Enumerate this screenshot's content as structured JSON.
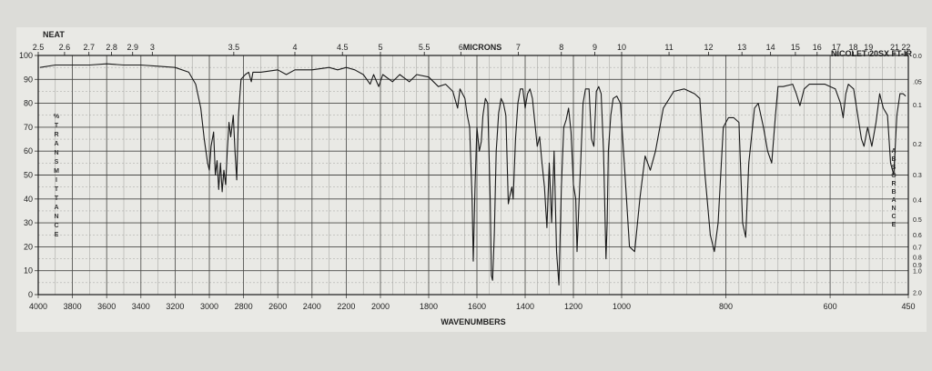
{
  "header": {
    "sample": "NEAT",
    "top_axis_label": "MICRONS",
    "instrument": "NICOLET 20SX FT-IR"
  },
  "chart_data": {
    "type": "line",
    "xlabel": "WAVENUMBERS",
    "ylabel": "% TRANSMITTANCE",
    "y2label": "ABSORBANCE",
    "x_ticks_bottom": [
      {
        "label": "4000",
        "value": 4000
      },
      {
        "label": "3800",
        "value": 3800
      },
      {
        "label": "3600",
        "value": 3600
      },
      {
        "label": "3400",
        "value": 3400
      },
      {
        "label": "3200",
        "value": 3200
      },
      {
        "label": "3000",
        "value": 3000
      },
      {
        "label": "2800",
        "value": 2800
      },
      {
        "label": "2600",
        "value": 2600
      },
      {
        "label": "2400",
        "value": 2400
      },
      {
        "label": "2200",
        "value": 2200
      },
      {
        "label": "2000",
        "value": 2000
      },
      {
        "label": "1800",
        "value": 1800
      },
      {
        "label": "1600",
        "value": 1600
      },
      {
        "label": "1400",
        "value": 1400
      },
      {
        "label": "1200",
        "value": 1200
      },
      {
        "label": "1000",
        "value": 1000
      },
      {
        "label": "800",
        "value": 800
      },
      {
        "label": "600",
        "value": 600
      },
      {
        "label": "450",
        "value": 450
      }
    ],
    "x_ticks_top": [
      {
        "label": "2.5",
        "value": 2.5
      },
      {
        "label": "2.6",
        "value": 2.6
      },
      {
        "label": "2.7",
        "value": 2.7
      },
      {
        "label": "2.8",
        "value": 2.8
      },
      {
        "label": "2.9",
        "value": 2.9
      },
      {
        "label": "3",
        "value": 3.0
      },
      {
        "label": "3.5",
        "value": 3.5
      },
      {
        "label": "4",
        "value": 4.0
      },
      {
        "label": "4.5",
        "value": 4.5
      },
      {
        "label": "5",
        "value": 5.0
      },
      {
        "label": "5.5",
        "value": 5.5
      },
      {
        "label": "6",
        "value": 6.0
      },
      {
        "label": "7",
        "value": 7.0
      },
      {
        "label": "8",
        "value": 8.0
      },
      {
        "label": "9",
        "value": 9.0
      },
      {
        "label": "10",
        "value": 10.0
      },
      {
        "label": "11",
        "value": 11.0
      },
      {
        "label": "12",
        "value": 12.0
      },
      {
        "label": "13",
        "value": 13.0
      },
      {
        "label": "14",
        "value": 14.0
      },
      {
        "label": "15",
        "value": 15.0
      },
      {
        "label": "16",
        "value": 16.0
      },
      {
        "label": "17",
        "value": 17.0
      },
      {
        "label": "18",
        "value": 18.0
      },
      {
        "label": "19",
        "value": 19.0
      },
      {
        "label": "21",
        "value": 21.0
      },
      {
        "label": "22",
        "value": 22.0
      }
    ],
    "y_ticks": [
      "0",
      "10",
      "20",
      "30",
      "40",
      "50",
      "60",
      "70",
      "80",
      "90",
      "100"
    ],
    "y2_ticks": [
      {
        "label": "0.0",
        "value": 0.0
      },
      {
        "label": ".05",
        "value": 0.05
      },
      {
        "label": "0.1",
        "value": 0.1
      },
      {
        "label": "0.2",
        "value": 0.2
      },
      {
        "label": "0.3",
        "value": 0.3
      },
      {
        "label": "0.4",
        "value": 0.4
      },
      {
        "label": "0.5",
        "value": 0.5
      },
      {
        "label": "0.6",
        "value": 0.6
      },
      {
        "label": "0.7",
        "value": 0.7
      },
      {
        "label": "0.8",
        "value": 0.8
      },
      {
        "label": "0.9",
        "value": 0.9
      },
      {
        "label": "1.0",
        "value": 1.0
      },
      {
        "label": "2.0",
        "value": 2.0
      }
    ],
    "xlim": [
      4000,
      450
    ],
    "ylim": [
      0,
      100
    ],
    "grid": true,
    "series": [
      {
        "color": "#1a1a1a",
        "points": [
          [
            3990,
            95
          ],
          [
            3900,
            96
          ],
          [
            3800,
            96
          ],
          [
            3700,
            96
          ],
          [
            3600,
            96.5
          ],
          [
            3500,
            96
          ],
          [
            3400,
            96
          ],
          [
            3300,
            95.5
          ],
          [
            3200,
            95
          ],
          [
            3120,
            93
          ],
          [
            3080,
            88
          ],
          [
            3050,
            78
          ],
          [
            3030,
            65
          ],
          [
            3010,
            55
          ],
          [
            3000,
            52
          ],
          [
            2990,
            62
          ],
          [
            2975,
            68
          ],
          [
            2965,
            50
          ],
          [
            2955,
            56
          ],
          [
            2945,
            44
          ],
          [
            2935,
            55
          ],
          [
            2925,
            43
          ],
          [
            2915,
            52
          ],
          [
            2905,
            46
          ],
          [
            2895,
            60
          ],
          [
            2885,
            72
          ],
          [
            2875,
            66
          ],
          [
            2860,
            75
          ],
          [
            2850,
            60
          ],
          [
            2840,
            48
          ],
          [
            2830,
            75
          ],
          [
            2815,
            90
          ],
          [
            2790,
            92
          ],
          [
            2770,
            93
          ],
          [
            2755,
            89
          ],
          [
            2745,
            93
          ],
          [
            2700,
            93
          ],
          [
            2600,
            94
          ],
          [
            2550,
            92
          ],
          [
            2500,
            94
          ],
          [
            2400,
            94
          ],
          [
            2300,
            95
          ],
          [
            2250,
            94
          ],
          [
            2200,
            95
          ],
          [
            2150,
            94
          ],
          [
            2100,
            92
          ],
          [
            2060,
            88
          ],
          [
            2040,
            92
          ],
          [
            2010,
            87
          ],
          [
            1990,
            92
          ],
          [
            1950,
            89
          ],
          [
            1920,
            92
          ],
          [
            1880,
            89
          ],
          [
            1850,
            92
          ],
          [
            1800,
            91
          ],
          [
            1760,
            87
          ],
          [
            1730,
            88
          ],
          [
            1700,
            85
          ],
          [
            1680,
            78
          ],
          [
            1670,
            86
          ],
          [
            1650,
            82
          ],
          [
            1640,
            75
          ],
          [
            1630,
            70
          ],
          [
            1620,
            40
          ],
          [
            1615,
            14
          ],
          [
            1608,
            45
          ],
          [
            1600,
            70
          ],
          [
            1590,
            60
          ],
          [
            1582,
            64
          ],
          [
            1575,
            75
          ],
          [
            1565,
            82
          ],
          [
            1555,
            80
          ],
          [
            1545,
            40
          ],
          [
            1540,
            8
          ],
          [
            1535,
            6
          ],
          [
            1528,
            25
          ],
          [
            1520,
            60
          ],
          [
            1510,
            76
          ],
          [
            1500,
            82
          ],
          [
            1490,
            80
          ],
          [
            1480,
            75
          ],
          [
            1470,
            38
          ],
          [
            1462,
            42
          ],
          [
            1455,
            45
          ],
          [
            1450,
            40
          ],
          [
            1440,
            65
          ],
          [
            1430,
            80
          ],
          [
            1420,
            86
          ],
          [
            1410,
            86
          ],
          [
            1400,
            78
          ],
          [
            1390,
            84
          ],
          [
            1380,
            86
          ],
          [
            1370,
            82
          ],
          [
            1360,
            72
          ],
          [
            1350,
            62
          ],
          [
            1340,
            66
          ],
          [
            1330,
            55
          ],
          [
            1320,
            45
          ],
          [
            1310,
            28
          ],
          [
            1300,
            55
          ],
          [
            1290,
            30
          ],
          [
            1280,
            60
          ],
          [
            1270,
            18
          ],
          [
            1260,
            4
          ],
          [
            1250,
            45
          ],
          [
            1240,
            70
          ],
          [
            1230,
            73
          ],
          [
            1220,
            78
          ],
          [
            1210,
            68
          ],
          [
            1200,
            46
          ],
          [
            1190,
            40
          ],
          [
            1185,
            18
          ],
          [
            1178,
            35
          ],
          [
            1170,
            55
          ],
          [
            1160,
            80
          ],
          [
            1150,
            86
          ],
          [
            1135,
            86
          ],
          [
            1125,
            65
          ],
          [
            1115,
            62
          ],
          [
            1105,
            85
          ],
          [
            1095,
            87
          ],
          [
            1085,
            84
          ],
          [
            1075,
            60
          ],
          [
            1065,
            15
          ],
          [
            1060,
            30
          ],
          [
            1055,
            60
          ],
          [
            1045,
            75
          ],
          [
            1035,
            82
          ],
          [
            1020,
            83
          ],
          [
            1005,
            80
          ],
          [
            995,
            55
          ],
          [
            985,
            20
          ],
          [
            975,
            18
          ],
          [
            965,
            40
          ],
          [
            955,
            58
          ],
          [
            945,
            52
          ],
          [
            935,
            60
          ],
          [
            920,
            78
          ],
          [
            900,
            85
          ],
          [
            880,
            86
          ],
          [
            860,
            84
          ],
          [
            850,
            82
          ],
          [
            840,
            50
          ],
          [
            830,
            25
          ],
          [
            822,
            18
          ],
          [
            815,
            30
          ],
          [
            805,
            70
          ],
          [
            795,
            74
          ],
          [
            785,
            74
          ],
          [
            775,
            72
          ],
          [
            768,
            30
          ],
          [
            762,
            24
          ],
          [
            756,
            55
          ],
          [
            745,
            78
          ],
          [
            738,
            80
          ],
          [
            728,
            70
          ],
          [
            720,
            60
          ],
          [
            712,
            55
          ],
          [
            705,
            75
          ],
          [
            700,
            87
          ],
          [
            690,
            87
          ],
          [
            672,
            88
          ],
          [
            665,
            84
          ],
          [
            658,
            79
          ],
          [
            650,
            86
          ],
          [
            640,
            88
          ],
          [
            620,
            88
          ],
          [
            610,
            88
          ],
          [
            600,
            87
          ],
          [
            590,
            86
          ],
          [
            580,
            80
          ],
          [
            575,
            74
          ],
          [
            570,
            84
          ],
          [
            565,
            88
          ],
          [
            555,
            86
          ],
          [
            545,
            72
          ],
          [
            540,
            65
          ],
          [
            535,
            62
          ],
          [
            528,
            70
          ],
          [
            520,
            62
          ],
          [
            512,
            72
          ],
          [
            505,
            84
          ],
          [
            498,
            78
          ],
          [
            490,
            75
          ],
          [
            484,
            55
          ],
          [
            478,
            50
          ],
          [
            472,
            75
          ],
          [
            466,
            84
          ],
          [
            460,
            84
          ],
          [
            455,
            83
          ]
        ]
      }
    ]
  }
}
